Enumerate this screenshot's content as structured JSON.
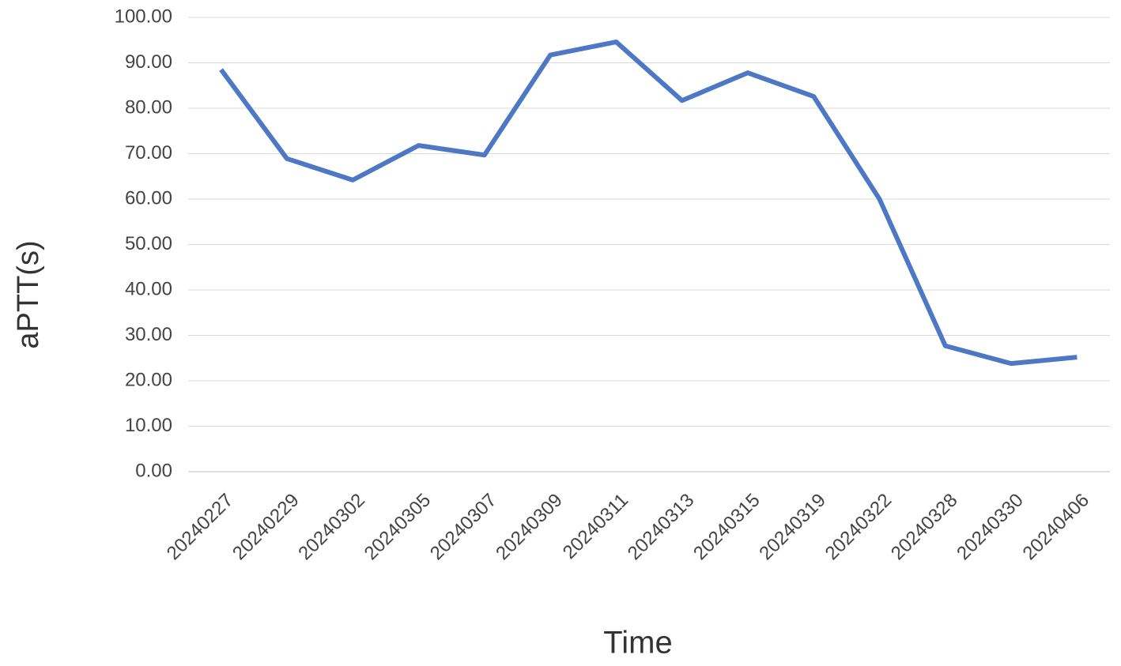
{
  "chart_data": {
    "type": "line",
    "x_label": "Time",
    "y_label": "aPTT(s)",
    "categories": [
      "20240227",
      "20240229",
      "20240302",
      "20240305",
      "20240307",
      "20240309",
      "20240311",
      "20240313",
      "20240315",
      "20240319",
      "20240322",
      "20240328",
      "20240330",
      "20240406"
    ],
    "series": [
      {
        "name": "aPTT",
        "color": "#4f78c4",
        "values": [
          88.5,
          68.9,
          64.2,
          71.8,
          69.7,
          91.7,
          94.6,
          81.7,
          87.8,
          82.6,
          60.0,
          27.7,
          23.8,
          25.2
        ]
      }
    ],
    "ylim": [
      0,
      100
    ],
    "yticks": [
      {
        "value": 0,
        "label": "0.00"
      },
      {
        "value": 10,
        "label": "10.00"
      },
      {
        "value": 20,
        "label": "20.00"
      },
      {
        "value": 30,
        "label": "30.00"
      },
      {
        "value": 40,
        "label": "40.00"
      },
      {
        "value": 50,
        "label": "50.00"
      },
      {
        "value": 60,
        "label": "60.00"
      },
      {
        "value": 70,
        "label": "70.00"
      },
      {
        "value": 80,
        "label": "80.00"
      },
      {
        "value": 90,
        "label": "90.00"
      },
      {
        "value": 100,
        "label": "100.00"
      }
    ],
    "grid": true
  }
}
